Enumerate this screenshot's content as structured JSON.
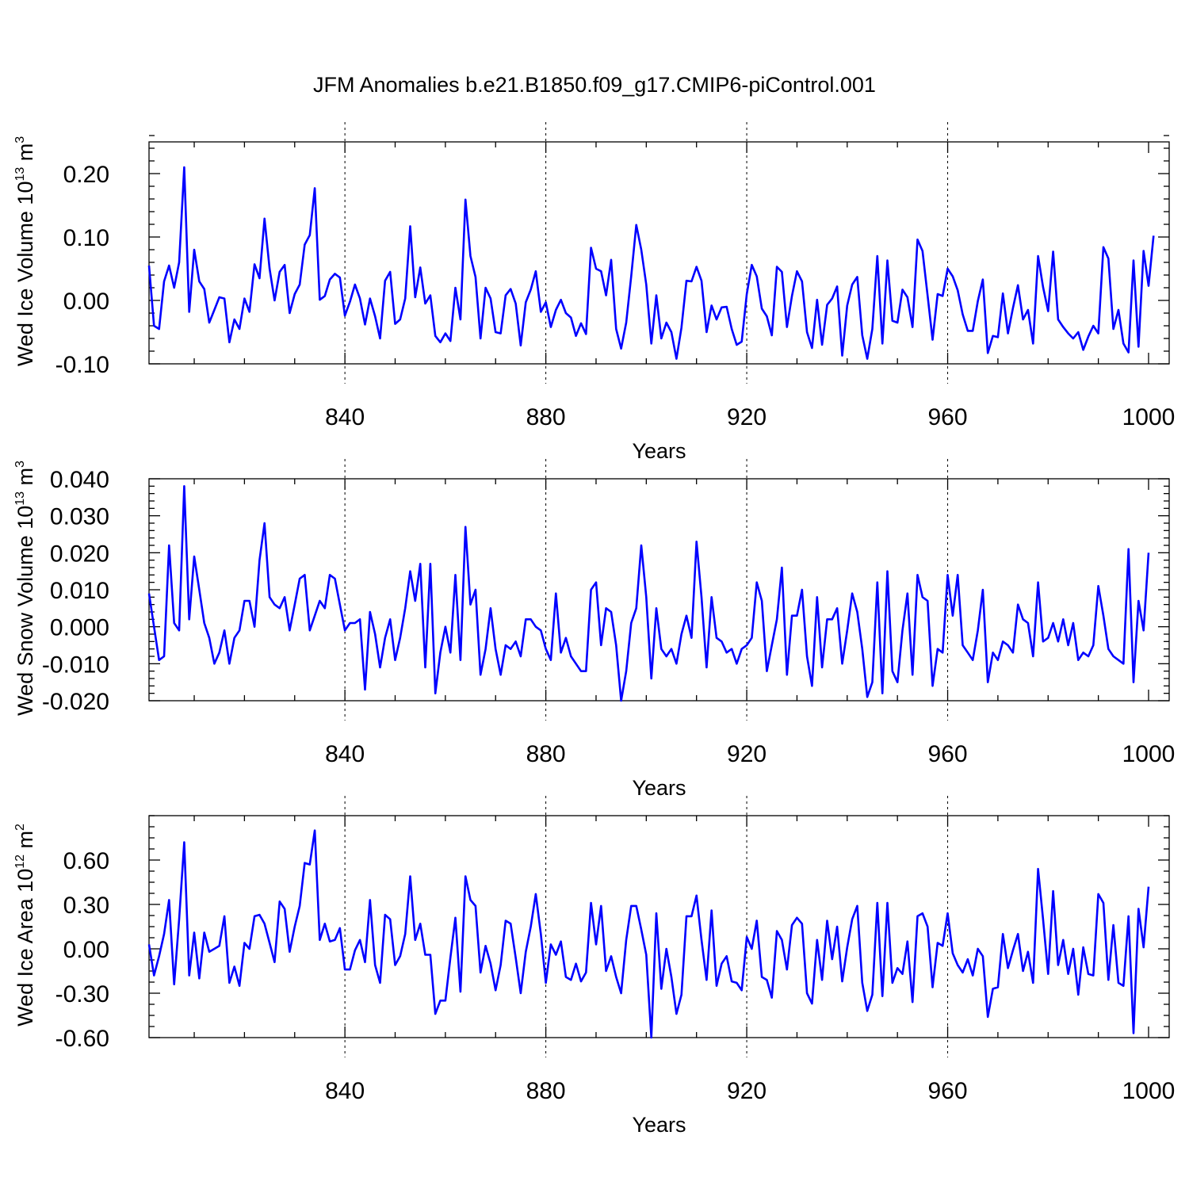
{
  "title": "JFM Anomalies b.e21.B1850.f09_g17.CMIP6-piControl.001",
  "chart_data": [
    {
      "type": "line",
      "ylabel": "Wed Ice Volume",
      "yunit_base": "10",
      "yunit_exp": "13",
      "yunit_tail": "m",
      "yunit_tail_exp": "3",
      "xlabel": "Years",
      "xlim": [
        801,
        1000
      ],
      "ylim": [
        -0.1,
        0.25
      ],
      "yticks": [
        -0.1,
        0.0,
        0.1,
        0.2
      ],
      "ytick_labels": [
        "-0.10",
        "0.00",
        "0.10",
        "0.20"
      ],
      "xticks": [
        840,
        880,
        920,
        960,
        1000
      ],
      "xtick_labels": [
        "840",
        "880",
        "920",
        "960",
        "1000"
      ],
      "grid": "vertical dashed at x ticks",
      "series_color": "#0000ff",
      "x_start": 801,
      "values": [
        0.055,
        -0.04,
        -0.045,
        0.03,
        0.055,
        0.02,
        0.06,
        0.21,
        -0.018,
        0.08,
        0.03,
        0.018,
        -0.035,
        -0.015,
        0.005,
        0.003,
        -0.066,
        -0.03,
        -0.045,
        0.003,
        -0.018,
        0.057,
        0.035,
        0.129,
        0.05,
        0.0,
        0.045,
        0.056,
        -0.02,
        0.01,
        0.025,
        0.088,
        0.103,
        0.177,
        0.001,
        0.007,
        0.033,
        0.042,
        0.036,
        -0.024,
        -0.002,
        0.025,
        0.003,
        -0.038,
        0.003,
        -0.025,
        -0.06,
        0.031,
        0.045,
        -0.037,
        -0.03,
        0.003,
        0.117,
        0.005,
        0.052,
        -0.005,
        0.008,
        -0.056,
        -0.066,
        -0.052,
        -0.064,
        0.02,
        -0.03,
        0.159,
        0.07,
        0.037,
        -0.06,
        0.02,
        0.003,
        -0.05,
        -0.052,
        0.008,
        0.018,
        -0.005,
        -0.071,
        -0.003,
        0.017,
        0.046,
        -0.018,
        -0.003,
        -0.042,
        -0.015,
        0.001,
        -0.02,
        -0.027,
        -0.056,
        -0.036,
        -0.053,
        0.083,
        0.05,
        0.046,
        0.008,
        0.064,
        -0.045,
        -0.076,
        -0.035,
        0.038,
        0.119,
        0.08,
        0.025,
        -0.068,
        0.008,
        -0.06,
        -0.035,
        -0.05,
        -0.092,
        -0.043,
        0.031,
        0.03,
        0.053,
        0.031,
        -0.05,
        -0.008,
        -0.03,
        -0.011,
        -0.01,
        -0.045,
        -0.07,
        -0.065,
        0.01,
        0.056,
        0.038,
        -0.013,
        -0.025,
        -0.055,
        0.053,
        0.045,
        -0.042,
        0.007,
        0.046,
        0.03,
        -0.05,
        -0.075,
        0.001,
        -0.07,
        -0.007,
        0.003,
        0.022,
        -0.087,
        -0.008,
        0.025,
        0.037,
        -0.055,
        -0.092,
        -0.045,
        0.07,
        -0.068,
        0.063,
        -0.032,
        -0.035,
        0.017,
        0.005,
        -0.042,
        0.096,
        0.078,
        0.008,
        -0.062,
        0.01,
        0.007,
        0.05,
        0.038,
        0.016,
        -0.022,
        -0.048,
        -0.048,
        -0.001,
        0.033,
        -0.083,
        -0.056,
        -0.058,
        0.011,
        -0.052,
        -0.012,
        0.024,
        -0.03,
        -0.015,
        -0.068,
        0.07,
        0.021,
        -0.017,
        0.077,
        -0.03,
        -0.042,
        -0.052,
        -0.06,
        -0.05,
        -0.078,
        -0.057,
        -0.04,
        -0.052,
        0.084,
        0.066,
        -0.045,
        -0.015,
        -0.068,
        -0.082,
        0.063,
        -0.073,
        0.078,
        0.023,
        0.102
      ]
    },
    {
      "type": "line",
      "ylabel": "Wed Snow Volume",
      "yunit_base": "10",
      "yunit_exp": "13",
      "yunit_tail": "m",
      "yunit_tail_exp": "3",
      "xlabel": "Years",
      "xlim": [
        801,
        1000
      ],
      "ylim": [
        -0.02,
        0.04
      ],
      "yticks": [
        -0.02,
        -0.01,
        0.0,
        0.01,
        0.02,
        0.03,
        0.04
      ],
      "ytick_labels": [
        "-0.020",
        "-0.010",
        "0.000",
        "0.010",
        "0.020",
        "0.030",
        "0.040"
      ],
      "xticks": [
        840,
        880,
        920,
        960,
        1000
      ],
      "xtick_labels": [
        "840",
        "880",
        "920",
        "960",
        "1000"
      ],
      "grid": "vertical dashed at x ticks",
      "series_color": "#0000ff",
      "x_start": 801,
      "values": [
        0.009,
        0.0,
        -0.009,
        -0.008,
        0.022,
        0.001,
        -0.001,
        0.038,
        0.002,
        0.019,
        0.01,
        0.001,
        -0.003,
        -0.01,
        -0.007,
        -0.001,
        -0.01,
        -0.003,
        -0.001,
        0.007,
        0.007,
        0.0,
        0.018,
        0.028,
        0.008,
        0.006,
        0.005,
        0.008,
        -0.001,
        0.006,
        0.013,
        0.014,
        -0.001,
        0.003,
        0.007,
        0.005,
        0.014,
        0.013,
        0.006,
        -0.001,
        0.001,
        0.001,
        0.002,
        -0.017,
        0.004,
        -0.002,
        -0.011,
        -0.003,
        0.002,
        -0.009,
        -0.003,
        0.005,
        0.015,
        0.007,
        0.017,
        -0.011,
        0.017,
        -0.018,
        -0.007,
        0.0,
        -0.007,
        0.014,
        -0.009,
        0.027,
        0.006,
        0.01,
        -0.013,
        -0.006,
        0.005,
        -0.006,
        -0.013,
        -0.005,
        -0.006,
        -0.004,
        -0.008,
        0.002,
        0.002,
        0.0,
        -0.001,
        -0.006,
        -0.009,
        0.009,
        -0.007,
        -0.003,
        -0.008,
        -0.01,
        -0.012,
        -0.012,
        0.01,
        0.012,
        -0.005,
        0.005,
        0.004,
        -0.005,
        -0.02,
        -0.012,
        0.001,
        0.005,
        0.022,
        0.008,
        -0.014,
        0.005,
        -0.006,
        -0.008,
        -0.006,
        -0.01,
        -0.002,
        0.003,
        -0.003,
        0.023,
        0.008,
        -0.011,
        0.008,
        -0.003,
        -0.004,
        -0.007,
        -0.006,
        -0.01,
        -0.006,
        -0.005,
        -0.003,
        0.012,
        0.007,
        -0.012,
        -0.005,
        0.002,
        0.016,
        -0.013,
        0.003,
        0.003,
        0.01,
        -0.008,
        -0.016,
        0.008,
        -0.011,
        0.002,
        0.002,
        0.005,
        -0.01,
        -0.001,
        0.009,
        0.004,
        -0.006,
        -0.019,
        -0.015,
        0.012,
        -0.018,
        0.015,
        -0.012,
        -0.015,
        -0.001,
        0.009,
        -0.013,
        0.014,
        0.008,
        0.007,
        -0.016,
        -0.006,
        -0.007,
        0.014,
        0.003,
        0.014,
        -0.005,
        -0.007,
        -0.009,
        -0.001,
        0.01,
        -0.015,
        -0.007,
        -0.009,
        -0.004,
        -0.005,
        -0.007,
        0.006,
        0.002,
        0.001,
        -0.008,
        0.012,
        -0.004,
        -0.003,
        0.001,
        -0.004,
        0.002,
        -0.005,
        0.001,
        -0.009,
        -0.007,
        -0.008,
        -0.005,
        0.011,
        0.003,
        -0.006,
        -0.008,
        -0.009,
        -0.01,
        0.021,
        -0.015,
        0.007,
        -0.001,
        0.02
      ]
    },
    {
      "type": "line",
      "ylabel": "Wed Ice Area",
      "yunit_base": "10",
      "yunit_exp": "12",
      "yunit_tail": "m",
      "yunit_tail_exp": "2",
      "xlabel": "Years",
      "xlim": [
        801,
        1000
      ],
      "ylim": [
        -0.6,
        0.9
      ],
      "yticks": [
        -0.6,
        -0.3,
        0.0,
        0.3,
        0.6
      ],
      "ytick_labels": [
        "-0.60",
        "-0.30",
        "0.00",
        "0.30",
        "0.60"
      ],
      "xticks": [
        840,
        880,
        920,
        960,
        1000
      ],
      "xtick_labels": [
        "840",
        "880",
        "920",
        "960",
        "1000"
      ],
      "grid": "vertical dashed at x ticks",
      "series_color": "#0000ff",
      "x_start": 801,
      "values": [
        0.03,
        -0.18,
        -0.05,
        0.1,
        0.33,
        -0.24,
        0.2,
        0.72,
        -0.18,
        0.11,
        -0.2,
        0.11,
        -0.02,
        0.0,
        0.02,
        0.22,
        -0.23,
        -0.12,
        -0.25,
        0.04,
        0.0,
        0.22,
        0.23,
        0.17,
        0.04,
        -0.09,
        0.32,
        0.27,
        -0.02,
        0.15,
        0.29,
        0.58,
        0.57,
        0.8,
        0.06,
        0.17,
        0.05,
        0.06,
        0.14,
        -0.14,
        -0.14,
        -0.01,
        0.06,
        -0.09,
        0.33,
        -0.11,
        -0.23,
        0.23,
        0.2,
        -0.11,
        -0.05,
        0.1,
        0.49,
        0.06,
        0.17,
        -0.04,
        -0.04,
        -0.44,
        -0.35,
        -0.35,
        -0.06,
        0.21,
        -0.29,
        0.49,
        0.33,
        0.29,
        -0.16,
        0.02,
        -0.1,
        -0.28,
        -0.11,
        0.19,
        0.17,
        -0.06,
        -0.3,
        -0.02,
        0.15,
        0.37,
        0.1,
        -0.23,
        0.03,
        -0.04,
        0.05,
        -0.19,
        -0.21,
        -0.1,
        -0.22,
        -0.16,
        0.31,
        0.03,
        0.29,
        -0.15,
        -0.05,
        -0.19,
        -0.3,
        0.06,
        0.29,
        0.29,
        0.13,
        -0.04,
        -0.6,
        0.24,
        -0.27,
        0.0,
        -0.19,
        -0.44,
        -0.31,
        0.22,
        0.22,
        0.36,
        0.06,
        -0.21,
        0.26,
        -0.25,
        -0.1,
        -0.05,
        -0.22,
        -0.23,
        -0.28,
        0.08,
        0.0,
        0.19,
        -0.19,
        -0.21,
        -0.33,
        0.12,
        0.06,
        -0.14,
        0.16,
        0.21,
        0.17,
        -0.3,
        -0.37,
        0.06,
        -0.21,
        0.19,
        -0.07,
        0.15,
        -0.22,
        0.01,
        0.2,
        0.29,
        -0.23,
        -0.42,
        -0.31,
        0.31,
        -0.32,
        0.31,
        -0.23,
        -0.13,
        -0.17,
        0.05,
        -0.36,
        0.22,
        0.24,
        0.15,
        -0.26,
        0.04,
        0.02,
        0.24,
        -0.03,
        -0.11,
        -0.16,
        -0.07,
        -0.18,
        0.0,
        -0.05,
        -0.46,
        -0.27,
        -0.26,
        0.1,
        -0.13,
        -0.01,
        0.1,
        -0.15,
        -0.02,
        -0.23,
        0.54,
        0.2,
        -0.17,
        0.39,
        -0.11,
        0.06,
        -0.17,
        0.0,
        -0.31,
        0.01,
        -0.17,
        -0.18,
        0.37,
        0.31,
        -0.21,
        0.16,
        -0.23,
        -0.25,
        0.22,
        -0.57,
        0.27,
        0.01,
        0.42
      ]
    }
  ]
}
